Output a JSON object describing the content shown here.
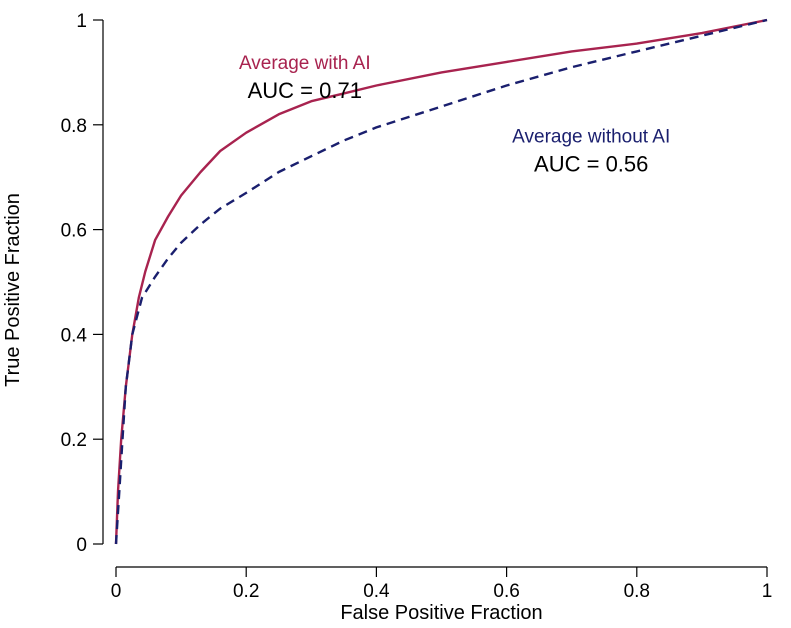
{
  "chart_data": {
    "type": "line",
    "title": "",
    "xlabel": "False Positive Fraction",
    "ylabel": "True Positive Fraction",
    "xlim": [
      0,
      1
    ],
    "ylim": [
      0,
      1
    ],
    "x_ticks": [
      {
        "value": 0,
        "label": "0"
      },
      {
        "value": 0.2,
        "label": "0.2"
      },
      {
        "value": 0.4,
        "label": "0.4"
      },
      {
        "value": 0.6,
        "label": "0.6"
      },
      {
        "value": 0.8,
        "label": "0.8"
      },
      {
        "value": 1,
        "label": "1"
      }
    ],
    "y_ticks": [
      {
        "value": 0,
        "label": "0"
      },
      {
        "value": 0.2,
        "label": "0.2"
      },
      {
        "value": 0.4,
        "label": "0.4"
      },
      {
        "value": 0.6,
        "label": "0.6"
      },
      {
        "value": 0.8,
        "label": "0.8"
      },
      {
        "value": 1,
        "label": "1"
      }
    ],
    "grid": false,
    "series": [
      {
        "name": "Average with AI",
        "annotation": "AUC = 0.71",
        "color": "#a8234f",
        "line_style": "solid",
        "points": [
          [
            0,
            0
          ],
          [
            0.003,
            0.1
          ],
          [
            0.008,
            0.2
          ],
          [
            0.015,
            0.3
          ],
          [
            0.025,
            0.4
          ],
          [
            0.035,
            0.47
          ],
          [
            0.045,
            0.52
          ],
          [
            0.06,
            0.58
          ],
          [
            0.08,
            0.625
          ],
          [
            0.1,
            0.665
          ],
          [
            0.13,
            0.71
          ],
          [
            0.16,
            0.75
          ],
          [
            0.2,
            0.785
          ],
          [
            0.25,
            0.82
          ],
          [
            0.3,
            0.845
          ],
          [
            0.35,
            0.86
          ],
          [
            0.4,
            0.875
          ],
          [
            0.5,
            0.9
          ],
          [
            0.6,
            0.92
          ],
          [
            0.7,
            0.94
          ],
          [
            0.8,
            0.955
          ],
          [
            0.9,
            0.975
          ],
          [
            1,
            1
          ]
        ]
      },
      {
        "name": "Average without AI",
        "annotation": "AUC = 0.56",
        "color": "#1a1f6e",
        "line_style": "dashed",
        "points": [
          [
            0,
            0
          ],
          [
            0.005,
            0.1
          ],
          [
            0.01,
            0.2
          ],
          [
            0.015,
            0.3
          ],
          [
            0.025,
            0.4
          ],
          [
            0.04,
            0.47
          ],
          [
            0.06,
            0.51
          ],
          [
            0.08,
            0.545
          ],
          [
            0.1,
            0.575
          ],
          [
            0.13,
            0.61
          ],
          [
            0.16,
            0.64
          ],
          [
            0.2,
            0.67
          ],
          [
            0.25,
            0.71
          ],
          [
            0.3,
            0.74
          ],
          [
            0.35,
            0.77
          ],
          [
            0.4,
            0.795
          ],
          [
            0.5,
            0.835
          ],
          [
            0.6,
            0.875
          ],
          [
            0.7,
            0.91
          ],
          [
            0.8,
            0.94
          ],
          [
            0.9,
            0.97
          ],
          [
            1,
            1
          ]
        ]
      }
    ],
    "annotations_anchor": [
      {
        "series": 0,
        "x": 0.29,
        "y": 0.92
      },
      {
        "series": 1,
        "x": 0.73,
        "y": 0.78
      }
    ]
  }
}
